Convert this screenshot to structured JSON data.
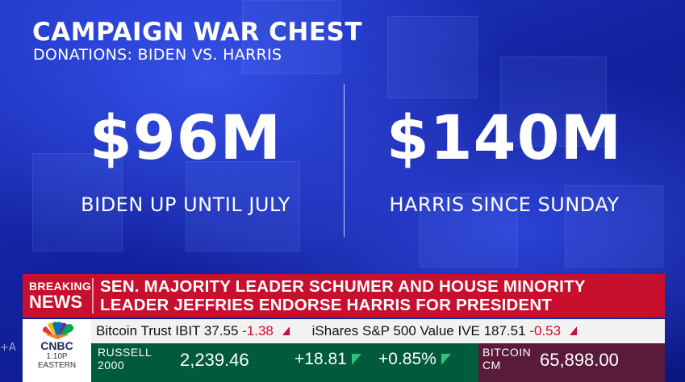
{
  "graphic": {
    "title": "CAMPAIGN WAR CHEST",
    "subtitle": "DONATIONS: BIDEN VS. HARRIS",
    "left": {
      "amount": "$96M",
      "caption": "BIDEN UP UNTIL JULY"
    },
    "right": {
      "amount": "$140M",
      "caption": "HARRIS SINCE SUNDAY"
    }
  },
  "breaking": {
    "tag_line1": "BREAKING",
    "tag_line2": "NEWS",
    "headline_line1": "SEN. MAJORITY LEADER SCHUMER AND HOUSE MINORITY",
    "headline_line2": "LEADER JEFFRIES ENDORSE HARRIS FOR PRESIDENT"
  },
  "network": {
    "name": "CNBC",
    "time": "1:10P",
    "zone": "EASTERN"
  },
  "ticker_top": [
    {
      "name": "Bitcoin Trust IBIT",
      "value": "37.55",
      "change": "-1.38"
    },
    {
      "name": "iShares S&P 500 Value IVE",
      "value": "187.51",
      "change": "-0.53"
    }
  ],
  "ticker_bottom": {
    "russell": {
      "name_line1": "RUSSELL",
      "name_line2": "2000",
      "value": "2,239.46",
      "change": "+18.81",
      "pct": "+0.85%"
    },
    "bitcoin": {
      "name_line1": "BITCOIN",
      "name_line2": "CM",
      "value": "65,898.00"
    }
  },
  "side_mark": "+A",
  "colors": {
    "breaking_red": "#c8102e",
    "ticker_green": "#005a3c",
    "ticker_maroon": "#5a1a3a",
    "background_blue": "#12229f"
  }
}
